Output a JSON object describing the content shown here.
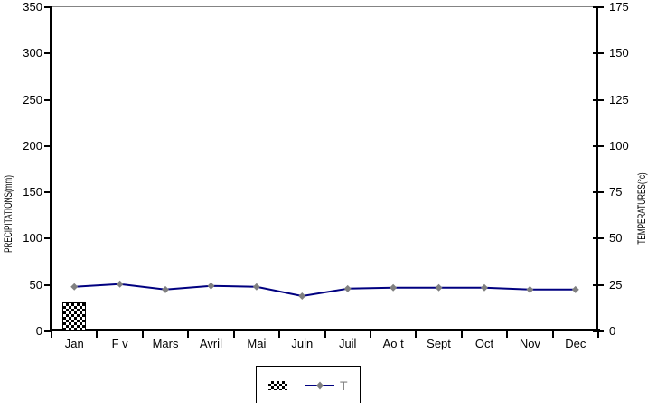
{
  "chart_data": {
    "type": "combo-bar-line",
    "title": "",
    "categories": [
      "Jan",
      "F v",
      "Mars",
      "Avril",
      "Mai",
      "Juin",
      "Juil",
      "Ao t",
      "Sept",
      "Oct",
      "Nov",
      "Dec"
    ],
    "series": [
      {
        "name": "precipitation",
        "type": "bar",
        "axis": "left",
        "swatch": "black-white-checker-pattern",
        "values": [
          31,
          0,
          0,
          0,
          0,
          0,
          0,
          0,
          0,
          0,
          0,
          0
        ]
      },
      {
        "name": "T",
        "type": "line",
        "axis": "right",
        "color": "#000080",
        "marker": "diamond",
        "marker_color": "#808080",
        "values": [
          24,
          25.5,
          22.5,
          24.5,
          24,
          19,
          23,
          23.5,
          23.5,
          23.5,
          22.5,
          22.5
        ]
      }
    ],
    "left_axis": {
      "label": "PRECIPITATIONS(mm)",
      "min": 0,
      "max": 350,
      "step": 50,
      "tick_labels": [
        "0",
        "50",
        "100",
        "150",
        "200",
        "250",
        "300",
        "350"
      ]
    },
    "right_axis": {
      "label": "TEMPERATURES(°c)",
      "min": 0,
      "max": 175,
      "step": 25,
      "tick_labels": [
        "0",
        "25",
        "50",
        "75",
        "100",
        "125",
        "150",
        "175"
      ]
    },
    "grid": false,
    "legend": {
      "position": "bottom-center",
      "items": [
        {
          "swatch": "pattern",
          "label": ""
        },
        {
          "swatch": "line-marker",
          "label": "T"
        }
      ]
    },
    "colors": {
      "line": "#000080",
      "marker": "#808080",
      "axis": "#000000",
      "plot_top_border": "#848484",
      "background": "#ffffff"
    }
  }
}
